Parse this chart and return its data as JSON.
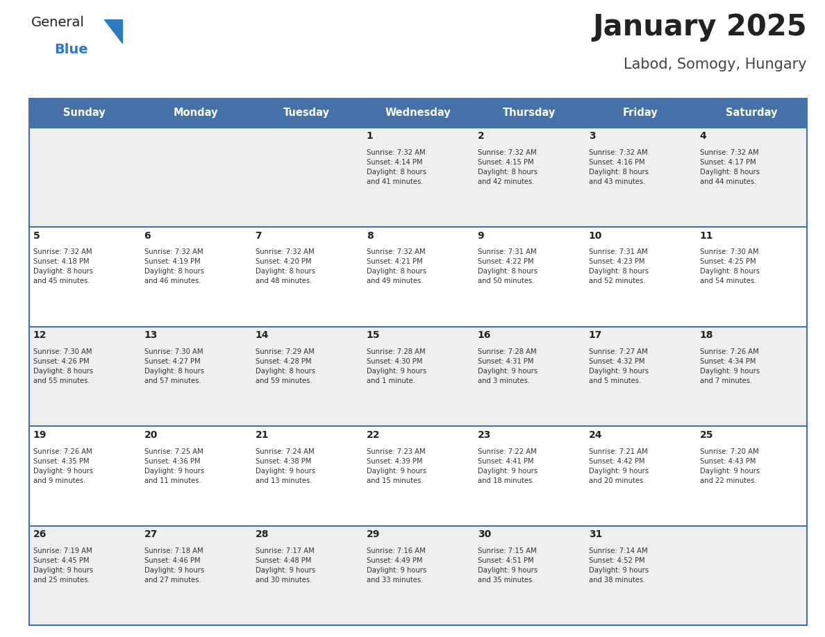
{
  "title": "January 2025",
  "subtitle": "Labod, Somogy, Hungary",
  "header_bg": "#4472a8",
  "header_text_color": "#ffffff",
  "days_of_week": [
    "Sunday",
    "Monday",
    "Tuesday",
    "Wednesday",
    "Thursday",
    "Friday",
    "Saturday"
  ],
  "title_color": "#222222",
  "subtitle_color": "#444444",
  "cell_line_color": "#4472a8",
  "row0_bg": "#eeeeee",
  "row1_bg": "#ffffff",
  "row2_bg": "#eeeeee",
  "row3_bg": "#ffffff",
  "row4_bg": "#eeeeee",
  "day_num_color": "#222222",
  "cell_text_color": "#333333",
  "logo_general_color": "#222222",
  "logo_blue_color": "#2b7bbf",
  "weeks": [
    [
      {
        "day": null,
        "info": null
      },
      {
        "day": null,
        "info": null
      },
      {
        "day": null,
        "info": null
      },
      {
        "day": 1,
        "info": "Sunrise: 7:32 AM\nSunset: 4:14 PM\nDaylight: 8 hours\nand 41 minutes."
      },
      {
        "day": 2,
        "info": "Sunrise: 7:32 AM\nSunset: 4:15 PM\nDaylight: 8 hours\nand 42 minutes."
      },
      {
        "day": 3,
        "info": "Sunrise: 7:32 AM\nSunset: 4:16 PM\nDaylight: 8 hours\nand 43 minutes."
      },
      {
        "day": 4,
        "info": "Sunrise: 7:32 AM\nSunset: 4:17 PM\nDaylight: 8 hours\nand 44 minutes."
      }
    ],
    [
      {
        "day": 5,
        "info": "Sunrise: 7:32 AM\nSunset: 4:18 PM\nDaylight: 8 hours\nand 45 minutes."
      },
      {
        "day": 6,
        "info": "Sunrise: 7:32 AM\nSunset: 4:19 PM\nDaylight: 8 hours\nand 46 minutes."
      },
      {
        "day": 7,
        "info": "Sunrise: 7:32 AM\nSunset: 4:20 PM\nDaylight: 8 hours\nand 48 minutes."
      },
      {
        "day": 8,
        "info": "Sunrise: 7:32 AM\nSunset: 4:21 PM\nDaylight: 8 hours\nand 49 minutes."
      },
      {
        "day": 9,
        "info": "Sunrise: 7:31 AM\nSunset: 4:22 PM\nDaylight: 8 hours\nand 50 minutes."
      },
      {
        "day": 10,
        "info": "Sunrise: 7:31 AM\nSunset: 4:23 PM\nDaylight: 8 hours\nand 52 minutes."
      },
      {
        "day": 11,
        "info": "Sunrise: 7:30 AM\nSunset: 4:25 PM\nDaylight: 8 hours\nand 54 minutes."
      }
    ],
    [
      {
        "day": 12,
        "info": "Sunrise: 7:30 AM\nSunset: 4:26 PM\nDaylight: 8 hours\nand 55 minutes."
      },
      {
        "day": 13,
        "info": "Sunrise: 7:30 AM\nSunset: 4:27 PM\nDaylight: 8 hours\nand 57 minutes."
      },
      {
        "day": 14,
        "info": "Sunrise: 7:29 AM\nSunset: 4:28 PM\nDaylight: 8 hours\nand 59 minutes."
      },
      {
        "day": 15,
        "info": "Sunrise: 7:28 AM\nSunset: 4:30 PM\nDaylight: 9 hours\nand 1 minute."
      },
      {
        "day": 16,
        "info": "Sunrise: 7:28 AM\nSunset: 4:31 PM\nDaylight: 9 hours\nand 3 minutes."
      },
      {
        "day": 17,
        "info": "Sunrise: 7:27 AM\nSunset: 4:32 PM\nDaylight: 9 hours\nand 5 minutes."
      },
      {
        "day": 18,
        "info": "Sunrise: 7:26 AM\nSunset: 4:34 PM\nDaylight: 9 hours\nand 7 minutes."
      }
    ],
    [
      {
        "day": 19,
        "info": "Sunrise: 7:26 AM\nSunset: 4:35 PM\nDaylight: 9 hours\nand 9 minutes."
      },
      {
        "day": 20,
        "info": "Sunrise: 7:25 AM\nSunset: 4:36 PM\nDaylight: 9 hours\nand 11 minutes."
      },
      {
        "day": 21,
        "info": "Sunrise: 7:24 AM\nSunset: 4:38 PM\nDaylight: 9 hours\nand 13 minutes."
      },
      {
        "day": 22,
        "info": "Sunrise: 7:23 AM\nSunset: 4:39 PM\nDaylight: 9 hours\nand 15 minutes."
      },
      {
        "day": 23,
        "info": "Sunrise: 7:22 AM\nSunset: 4:41 PM\nDaylight: 9 hours\nand 18 minutes."
      },
      {
        "day": 24,
        "info": "Sunrise: 7:21 AM\nSunset: 4:42 PM\nDaylight: 9 hours\nand 20 minutes."
      },
      {
        "day": 25,
        "info": "Sunrise: 7:20 AM\nSunset: 4:43 PM\nDaylight: 9 hours\nand 22 minutes."
      }
    ],
    [
      {
        "day": 26,
        "info": "Sunrise: 7:19 AM\nSunset: 4:45 PM\nDaylight: 9 hours\nand 25 minutes."
      },
      {
        "day": 27,
        "info": "Sunrise: 7:18 AM\nSunset: 4:46 PM\nDaylight: 9 hours\nand 27 minutes."
      },
      {
        "day": 28,
        "info": "Sunrise: 7:17 AM\nSunset: 4:48 PM\nDaylight: 9 hours\nand 30 minutes."
      },
      {
        "day": 29,
        "info": "Sunrise: 7:16 AM\nSunset: 4:49 PM\nDaylight: 9 hours\nand 33 minutes."
      },
      {
        "day": 30,
        "info": "Sunrise: 7:15 AM\nSunset: 4:51 PM\nDaylight: 9 hours\nand 35 minutes."
      },
      {
        "day": 31,
        "info": "Sunrise: 7:14 AM\nSunset: 4:52 PM\nDaylight: 9 hours\nand 38 minutes."
      },
      {
        "day": null,
        "info": null
      }
    ]
  ],
  "fig_width": 11.88,
  "fig_height": 9.18,
  "dpi": 100
}
